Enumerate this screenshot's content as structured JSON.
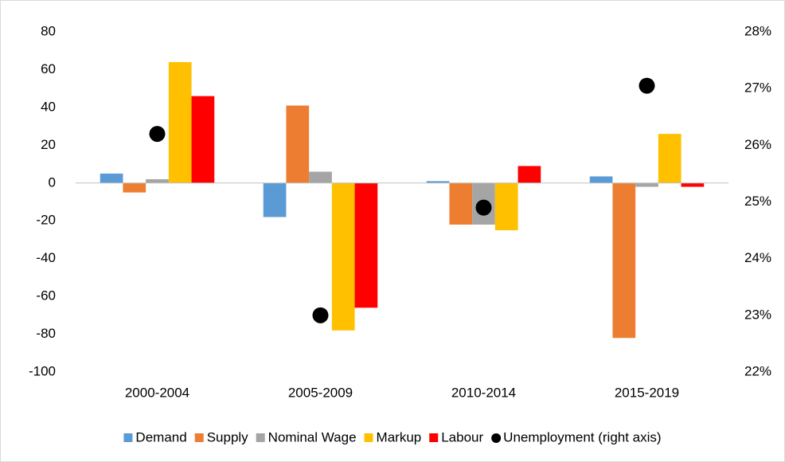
{
  "chart_data": {
    "type": "bar",
    "categories": [
      "2000-2004",
      "2005-2009",
      "2010-2014",
      "2015-2019"
    ],
    "series": [
      {
        "name": "Demand",
        "color": "#5b9bd5",
        "values": [
          5,
          -18,
          1,
          3.5
        ]
      },
      {
        "name": "Supply",
        "color": "#ed7d31",
        "values": [
          -5,
          41,
          -22,
          -82
        ]
      },
      {
        "name": "Nominal Wage",
        "color": "#a5a5a5",
        "values": [
          2,
          6,
          -22,
          -2
        ]
      },
      {
        "name": "Markup",
        "color": "#ffc000",
        "values": [
          64,
          -78,
          -25,
          26
        ]
      },
      {
        "name": "Labour",
        "color": "#ff0000",
        "values": [
          46,
          -66,
          9,
          -2
        ]
      },
      {
        "name": "Unemployment (right axis)",
        "color": "#000000",
        "type": "scatter",
        "axis": "y2",
        "values": [
          26.2,
          23.0,
          24.9,
          27.05
        ]
      }
    ],
    "ylim": [
      -100,
      80
    ],
    "yticks": [
      -100,
      -80,
      -60,
      -40,
      -20,
      0,
      20,
      40,
      60,
      80
    ],
    "y2lim": [
      22,
      28
    ],
    "y2ticks": [
      {
        "value": 22,
        "label": "22%"
      },
      {
        "value": 23,
        "label": "23%"
      },
      {
        "value": 24,
        "label": "24%"
      },
      {
        "value": 25,
        "label": "25%"
      },
      {
        "value": 26,
        "label": "26%"
      },
      {
        "value": 27,
        "label": "27%"
      },
      {
        "value": 28,
        "label": "28%"
      }
    ],
    "grid": false,
    "legend": "bottom"
  }
}
